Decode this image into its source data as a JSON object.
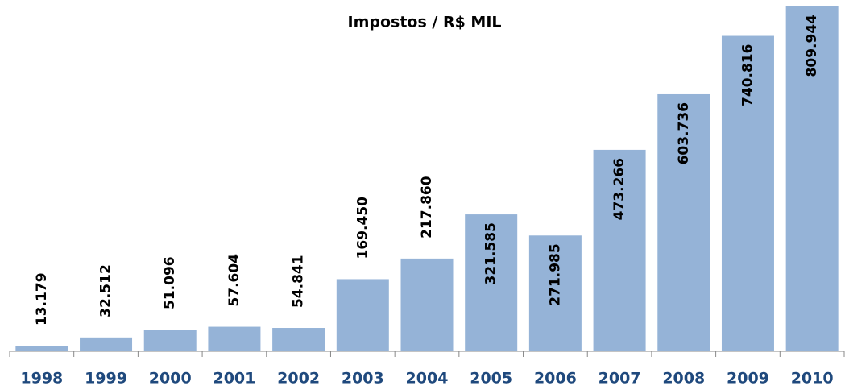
{
  "chart_data": {
    "type": "bar",
    "title": "Impostos / R$ MIL",
    "categories": [
      "1998",
      "1999",
      "2000",
      "2001",
      "2002",
      "2003",
      "2004",
      "2005",
      "2006",
      "2007",
      "2008",
      "2009",
      "2010"
    ],
    "values": [
      13179,
      32512,
      51096,
      57604,
      54841,
      169450,
      217860,
      321585,
      271985,
      473266,
      603736,
      740816,
      809944
    ],
    "value_labels": [
      "13.179",
      "32.512",
      "51.096",
      "57.604",
      "54.841",
      "169.450",
      "217.860",
      "321.585",
      "271.985",
      "473.266",
      "603.736",
      "740.816",
      "809.944"
    ],
    "color": "#95b3d7",
    "category_color": "#1f497d"
  }
}
